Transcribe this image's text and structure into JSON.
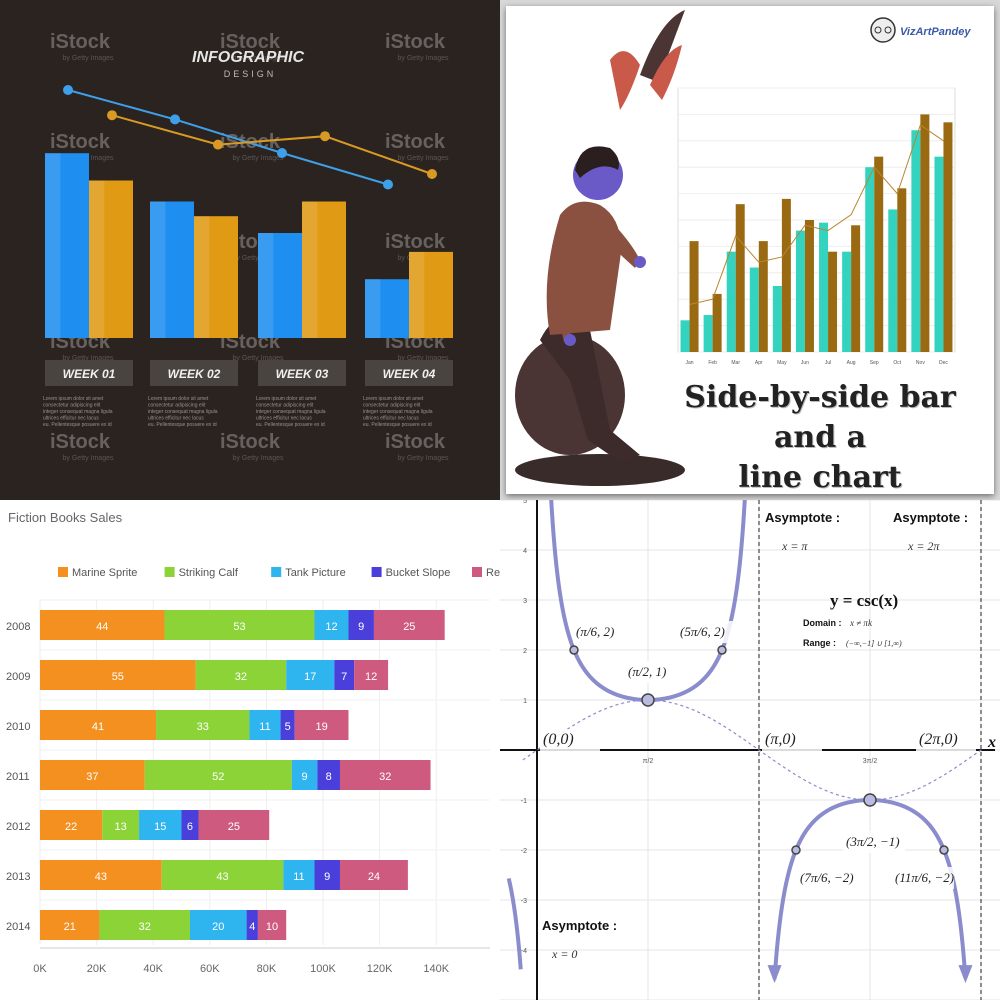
{
  "chart_data": [
    {
      "type": "bar",
      "panel": "infographic",
      "title": "INFOGRAPHIC",
      "subtitle": "DESIGN",
      "categories": [
        "WEEK 01",
        "WEEK 02",
        "WEEK 03",
        "WEEK 04"
      ],
      "series": [
        {
          "color": "#1e8ff0",
          "values": [
            88,
            65,
            50,
            28
          ]
        },
        {
          "color": "#e09a14",
          "values": [
            75,
            58,
            65,
            41
          ]
        }
      ],
      "lines": [
        {
          "color": "#3ea0e8",
          "values": [
            100,
            86,
            70,
            55
          ]
        },
        {
          "color": "#d89a24",
          "values": [
            88,
            74,
            78,
            60
          ]
        }
      ],
      "body_text": "Lorem ipsum dolor sit amet consectetur adipiscing elit integer consequat magna ligula ultrices efficitur nec lacus eu. Pellentesque posuere ex id",
      "watermark": "iStock",
      "watermark_sub": "by Getty Images"
    },
    {
      "type": "bar",
      "panel": "side-by-side",
      "brand": "VizArtPandey",
      "title_line1": "Side-by-side bar and a",
      "title_line2": "line chart",
      "categories": [
        "Jan",
        "Feb",
        "Mar",
        "Apr",
        "May",
        "Jun",
        "Jul",
        "Aug",
        "Sep",
        "Oct",
        "Nov",
        "Dec"
      ],
      "ylim": [
        0,
        100
      ],
      "series": [
        {
          "color": "#34d3c0",
          "values": [
            12,
            14,
            38,
            32,
            25,
            46,
            49,
            38,
            70,
            54,
            84,
            74
          ]
        },
        {
          "color": "#9a6a12",
          "values": [
            42,
            22,
            56,
            42,
            58,
            50,
            38,
            48,
            74,
            62,
            90,
            87
          ]
        }
      ],
      "line": {
        "color": "#b8862e",
        "values": [
          18,
          20,
          44,
          34,
          36,
          48,
          46,
          52,
          70,
          60,
          86,
          80
        ]
      }
    },
    {
      "type": "bar",
      "orientation": "horizontal-stacked",
      "title": "Fiction Books Sales",
      "categories": [
        "2008",
        "2009",
        "2010",
        "2011",
        "2012",
        "2013",
        "2014"
      ],
      "series": [
        {
          "name": "Marine Sprite",
          "color": "#f4901f",
          "values": [
            44,
            55,
            41,
            37,
            22,
            43,
            21
          ]
        },
        {
          "name": "Striking Calf",
          "color": "#8cd338",
          "values": [
            53,
            32,
            33,
            52,
            13,
            43,
            32
          ]
        },
        {
          "name": "Tank Picture",
          "color": "#2eb4ee",
          "values": [
            12,
            17,
            11,
            9,
            15,
            11,
            20
          ]
        },
        {
          "name": "Bucket Slope",
          "color": "#4b3fdc",
          "values": [
            9,
            7,
            5,
            8,
            6,
            9,
            4
          ]
        },
        {
          "name": "Reborn Kid",
          "color": "#cf5a80",
          "values": [
            25,
            12,
            19,
            32,
            25,
            24,
            10
          ]
        }
      ],
      "unit_scale": 1000,
      "xticks": [
        "0K",
        "20K",
        "40K",
        "60K",
        "80K",
        "100K",
        "120K",
        "140K"
      ],
      "xlim": [
        0,
        150
      ]
    },
    {
      "type": "line",
      "title": "y = csc(x)",
      "domain_label": "Domain :",
      "domain_value": "x ≠ πk",
      "range_label": "Range :",
      "range_value": "(−∞,−1] ∪ [1,∞)",
      "asymptotes": [
        {
          "label": "Asymptote :",
          "eq": "x = 0"
        },
        {
          "label": "Asymptote :",
          "eq": "x = π"
        },
        {
          "label": "Asymptote :",
          "eq": "x = 2π"
        }
      ],
      "yticks": [
        "5",
        "4",
        "3",
        "2",
        "1",
        "-1",
        "-2",
        "-3",
        "-4"
      ],
      "xticks": [
        "π/2",
        "3π/2"
      ],
      "points": [
        {
          "label": "(0,0)"
        },
        {
          "label": "(π,0)"
        },
        {
          "label": "(2π,0)"
        },
        {
          "label": "(π/6, 2)"
        },
        {
          "label": "(π/2, 1)"
        },
        {
          "label": "(5π/6, 2)"
        },
        {
          "label": "(3π/2, −1)"
        },
        {
          "label": "(7π/6, −2)"
        },
        {
          "label": "(11π/6, −2)"
        }
      ],
      "curve_color": "#8a8ccc",
      "x_axis_letter": "x"
    }
  ]
}
